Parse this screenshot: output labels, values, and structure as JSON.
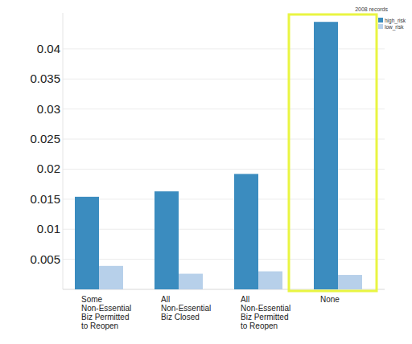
{
  "chart_data": {
    "type": "bar",
    "annotation": "2008 records",
    "categories": [
      "Some\nNon-Essential\nBiz Permitted\nto Reopen",
      "All\nNon-Essential\nBiz Closed",
      "All\nNon-Essential\nBiz Permitted\nto Reopen",
      "None"
    ],
    "series": [
      {
        "name": "high_risk",
        "color": "#3b8cbf",
        "values": [
          0.0154,
          0.0163,
          0.0192,
          0.0445
        ]
      },
      {
        "name": "low_risk",
        "color": "#b7d0ea",
        "values": [
          0.0039,
          0.0026,
          0.003,
          0.0024
        ]
      }
    ],
    "ylim": [
      0,
      0.046
    ],
    "yticks": [
      0.005,
      0.01,
      0.015,
      0.02,
      0.025,
      0.03,
      0.035,
      0.04
    ],
    "grid": true,
    "legend": "top-right"
  }
}
